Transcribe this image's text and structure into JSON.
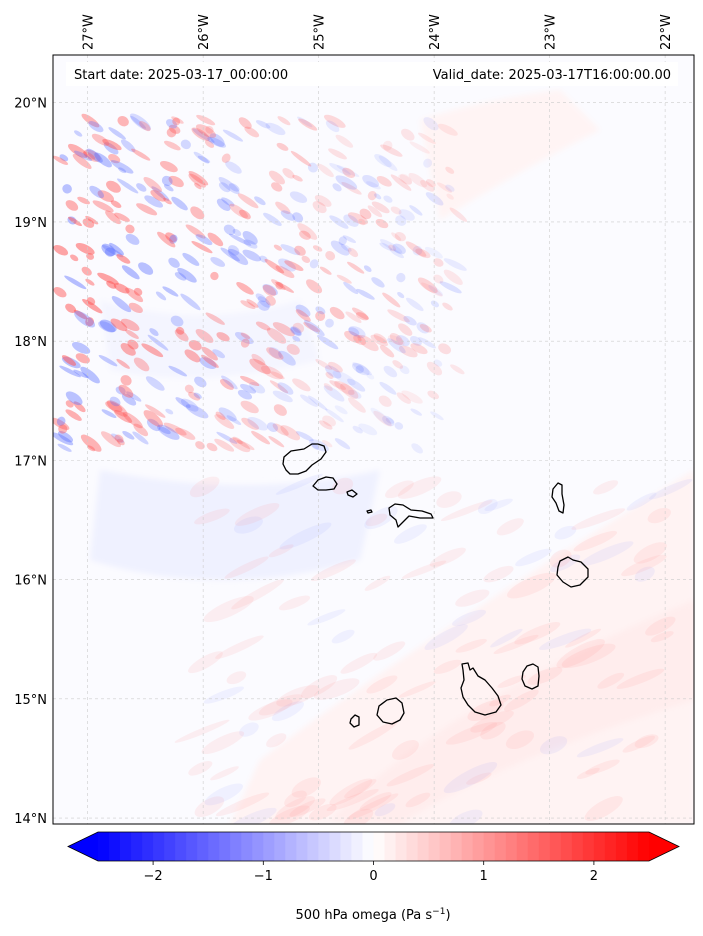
{
  "header": {
    "start_label": "Start date: 2025-03-17_00:00:00",
    "valid_label": "Valid_date: 2025-03-17T16:00:00.00"
  },
  "map": {
    "lon_ticks": [
      "27°W",
      "26°W",
      "25°W",
      "24°W",
      "23°W",
      "22°W"
    ],
    "lat_ticks": [
      "20°N",
      "19°N",
      "18°N",
      "17°N",
      "16°N",
      "15°N",
      "14°N"
    ],
    "lon_range": [
      -27.3,
      -21.75
    ],
    "lat_range": [
      13.95,
      20.4
    ],
    "grid": true,
    "coastline_color": "#000000"
  },
  "colorbar": {
    "ticks": [
      "−2",
      "−1",
      "0",
      "1",
      "2"
    ],
    "tick_values": [
      -2,
      -1,
      0,
      1,
      2
    ],
    "range": [
      -2.5,
      2.5
    ],
    "extend": "both",
    "cmap": "bwr",
    "label_main": "500 hPa omega (Pa s",
    "label_sup": "−1",
    "label_end": ")"
  },
  "colors": {
    "negative": "#0000ff",
    "neutral": "#ffffff",
    "positive": "#ff0000"
  }
}
